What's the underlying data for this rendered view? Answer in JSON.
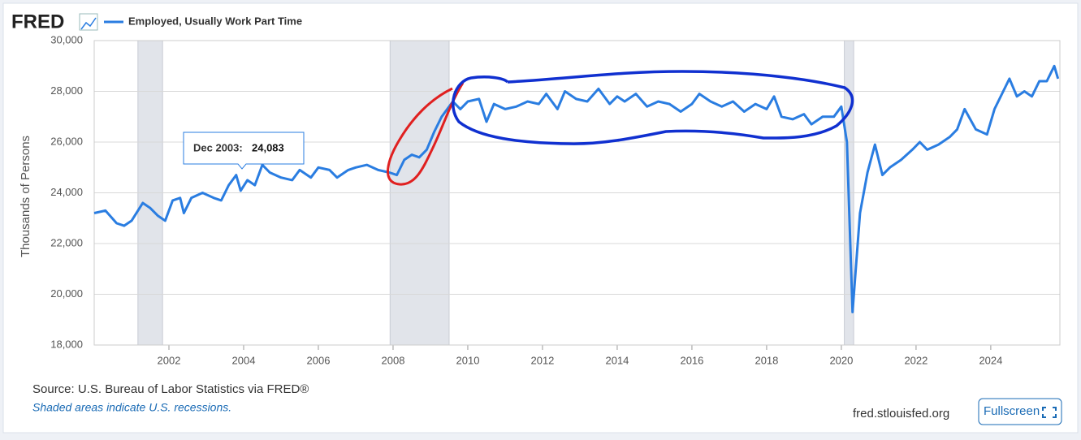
{
  "logo": "FRED",
  "source": "Source: U.S. Bureau of Labor Statistics via FRED®",
  "note": "Shaded areas indicate U.S. recessions.",
  "site": "fred.stlouisfed.org",
  "button": "Fullscreen",
  "chart_data": {
    "type": "line",
    "ylabel": "Thousands of Persons",
    "series": [
      {
        "name": "Employed, Usually Work Part Time",
        "color": "#2a7de1",
        "x": [
          2000.0,
          2000.3,
          2000.6,
          2000.8,
          2001.0,
          2001.3,
          2001.5,
          2001.7,
          2001.9,
          2002.1,
          2002.3,
          2002.4,
          2002.6,
          2002.9,
          2003.2,
          2003.4,
          2003.6,
          2003.8,
          2003.92,
          2004.1,
          2004.3,
          2004.5,
          2004.7,
          2005.0,
          2005.3,
          2005.5,
          2005.8,
          2006.0,
          2006.3,
          2006.5,
          2006.8,
          2007.0,
          2007.3,
          2007.6,
          2007.9,
          2008.1,
          2008.3,
          2008.5,
          2008.7,
          2008.9,
          2009.1,
          2009.3,
          2009.6,
          2009.8,
          2010.0,
          2010.3,
          2010.5,
          2010.7,
          2011.0,
          2011.3,
          2011.6,
          2011.9,
          2012.1,
          2012.4,
          2012.6,
          2012.9,
          2013.2,
          2013.5,
          2013.8,
          2014.0,
          2014.2,
          2014.5,
          2014.8,
          2015.1,
          2015.4,
          2015.7,
          2016.0,
          2016.2,
          2016.5,
          2016.8,
          2017.1,
          2017.4,
          2017.7,
          2018.0,
          2018.2,
          2018.4,
          2018.7,
          2019.0,
          2019.2,
          2019.5,
          2019.8,
          2020.0,
          2020.15,
          2020.3,
          2020.5,
          2020.7,
          2020.9,
          2021.1,
          2021.3,
          2021.6,
          2021.9,
          2022.1,
          2022.3,
          2022.6,
          2022.9,
          2023.1,
          2023.3,
          2023.6,
          2023.9,
          2024.1,
          2024.3,
          2024.5,
          2024.7,
          2024.9,
          2025.1,
          2025.3,
          2025.5,
          2025.7,
          2025.8
        ],
        "values": [
          23200,
          23300,
          22800,
          22700,
          22900,
          23600,
          23400,
          23100,
          22900,
          23700,
          23800,
          23200,
          23800,
          24000,
          23800,
          23700,
          24300,
          24700,
          24083,
          24500,
          24300,
          25100,
          24800,
          24600,
          24500,
          24900,
          24600,
          25000,
          24900,
          24600,
          24900,
          25000,
          25100,
          24900,
          24800,
          24700,
          25300,
          25500,
          25400,
          25700,
          26400,
          27000,
          27600,
          27300,
          27600,
          27700,
          26800,
          27500,
          27300,
          27400,
          27600,
          27500,
          27900,
          27300,
          28000,
          27700,
          27600,
          28100,
          27500,
          27800,
          27600,
          27900,
          27400,
          27600,
          27500,
          27200,
          27500,
          27900,
          27600,
          27400,
          27600,
          27200,
          27500,
          27300,
          27800,
          27000,
          26900,
          27100,
          26700,
          27000,
          27000,
          27400,
          26000,
          19300,
          23200,
          24800,
          25900,
          24700,
          25000,
          25300,
          25700,
          26000,
          25700,
          25900,
          26200,
          26500,
          27300,
          26500,
          26300,
          27300,
          27900,
          28500,
          27800,
          28000,
          27800,
          28400,
          28400,
          29000,
          28500
        ]
      }
    ],
    "xlim": [
      2000,
      2025.85
    ],
    "xticks": [
      2002,
      2004,
      2006,
      2008,
      2010,
      2012,
      2014,
      2016,
      2018,
      2020,
      2022,
      2024
    ],
    "ylim": [
      18000,
      30000
    ],
    "yticks": [
      {
        "value": 18000,
        "label": "18,000"
      },
      {
        "value": 20000,
        "label": "20,000"
      },
      {
        "value": 22000,
        "label": "22,000"
      },
      {
        "value": 24000,
        "label": "24,000"
      },
      {
        "value": 26000,
        "label": "26,000"
      },
      {
        "value": 28000,
        "label": "28,000"
      },
      {
        "value": 30000,
        "label": "30,000"
      }
    ],
    "grid": true,
    "recessions": [
      [
        2001.17,
        2001.83
      ],
      [
        2007.92,
        2009.5
      ],
      [
        2020.08,
        2020.33
      ]
    ],
    "tooltip": {
      "label": "Dec 2003:",
      "value": 24083,
      "value_label": "24,083"
    }
  }
}
